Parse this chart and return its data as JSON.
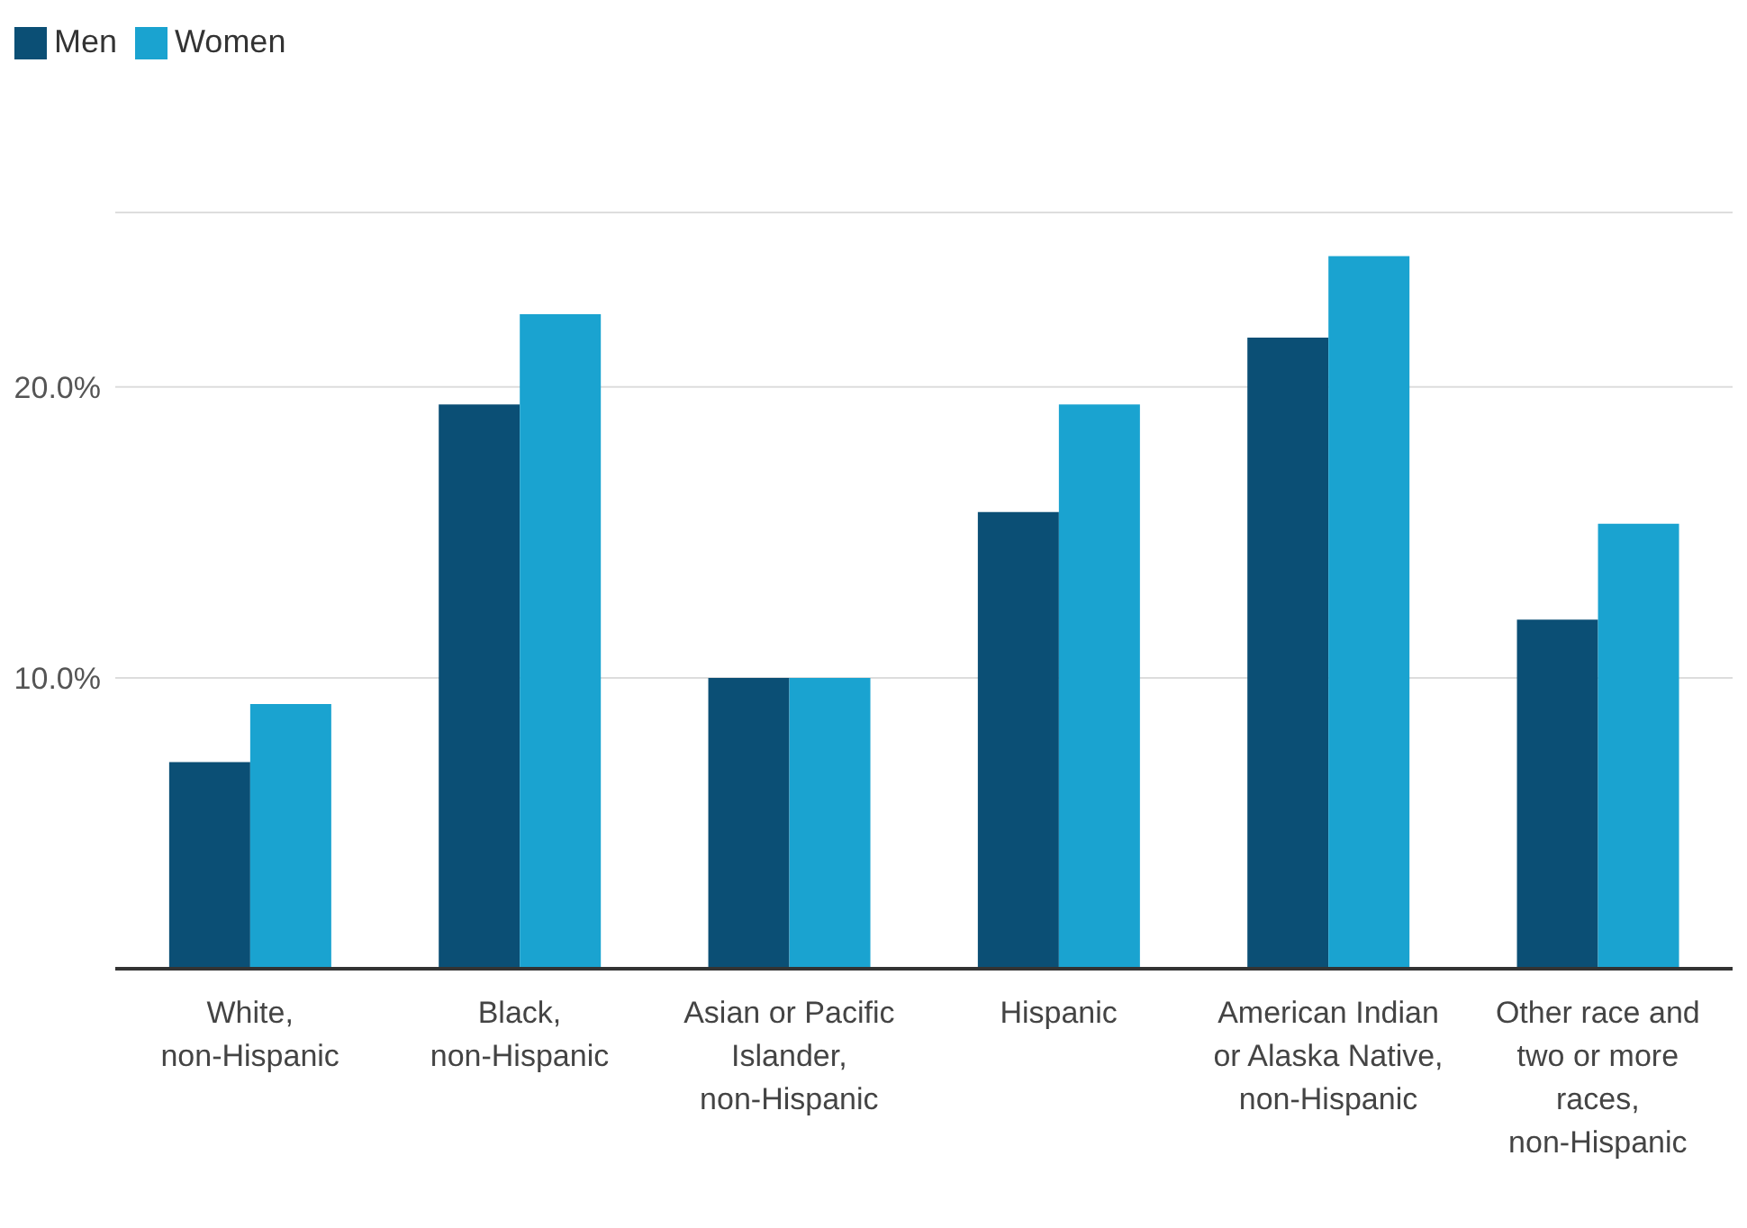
{
  "chart_data": {
    "type": "bar",
    "categories": [
      "White, non-Hispanic",
      "Black, non-Hispanic",
      "Asian or Pacific Islander, non-Hispanic",
      "Hispanic",
      "American Indian or Alaska Native, non-Hispanic",
      "Other race and two or more races, non-Hispanic"
    ],
    "series": [
      {
        "name": "Men",
        "color": "#0b4f75",
        "values": [
          7.1,
          19.4,
          10.0,
          15.7,
          21.7,
          12.0
        ]
      },
      {
        "name": "Women",
        "color": "#1aa3d0",
        "values": [
          9.1,
          22.5,
          10.0,
          19.4,
          24.5,
          15.3
        ]
      }
    ],
    "ylim": [
      0,
      26
    ],
    "yticks": [
      {
        "value": 10,
        "label": "10.0%"
      },
      {
        "value": 20,
        "label": "20.0%"
      }
    ],
    "grid": "y",
    "legend": "top left"
  }
}
